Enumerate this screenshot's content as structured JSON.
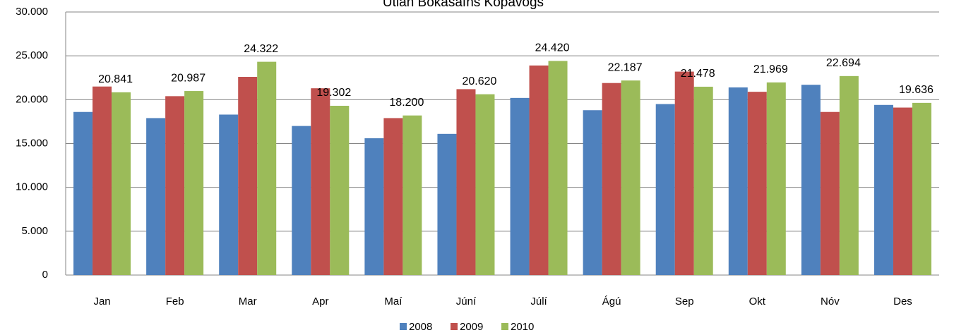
{
  "chart_data": {
    "type": "bar",
    "title": "Útlán Bókasafns Kópavogs",
    "categories": [
      "Jan",
      "Feb",
      "Mar",
      "Apr",
      "Maí",
      "Júní",
      "Júlí",
      "Ágú",
      "Sep",
      "Okt",
      "Nóv",
      "Des"
    ],
    "series": [
      {
        "name": "2008",
        "color": "#4f81bd",
        "values": [
          18600,
          17900,
          18300,
          17000,
          15600,
          16100,
          20200,
          18800,
          19500,
          21400,
          21700,
          19400
        ]
      },
      {
        "name": "2009",
        "color": "#c0504d",
        "values": [
          21500,
          20400,
          22600,
          21300,
          17900,
          21200,
          23900,
          21900,
          23200,
          20900,
          18600,
          19100
        ]
      },
      {
        "name": "2010",
        "color": "#9bbb59",
        "values": [
          20841,
          20987,
          24322,
          19302,
          18200,
          20620,
          24420,
          22187,
          21478,
          21969,
          22694,
          19636
        ],
        "value_labels": [
          "20.841",
          "20.987",
          "24.322",
          "19.302",
          "18.200",
          "20.620",
          "24.420",
          "22.187",
          "21.478",
          "21.969",
          "22.694",
          "19.636"
        ]
      }
    ],
    "ylim": [
      0,
      30000
    ],
    "yticks": [
      0,
      {
        "value": 5000,
        "label": "5.000"
      },
      {
        "value": 10000,
        "label": "10.000"
      },
      {
        "value": 15000,
        "label": "15.000"
      },
      {
        "value": 20000,
        "label": "20.000"
      },
      {
        "value": 25000,
        "label": "25.000"
      },
      {
        "value": 30000,
        "label": "30.000"
      }
    ],
    "grid": true,
    "legend": "bottom"
  }
}
